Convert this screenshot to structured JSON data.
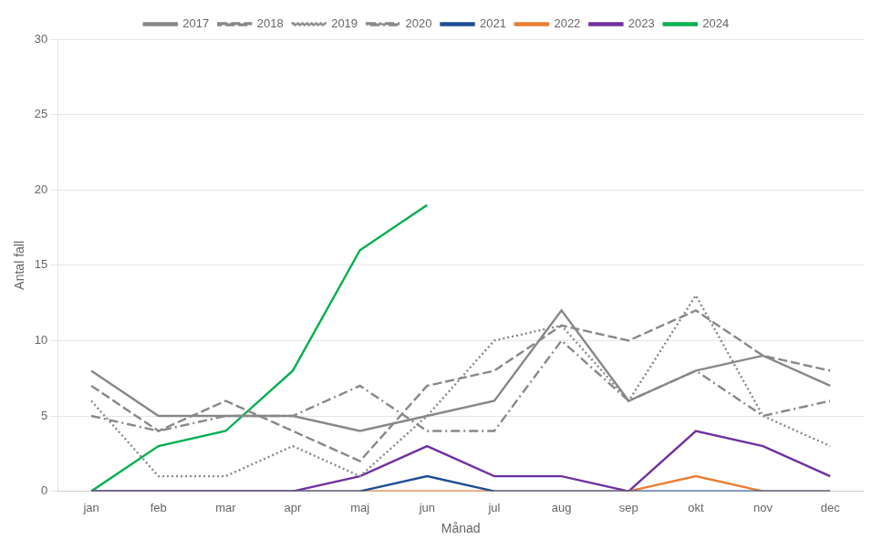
{
  "chart_data": {
    "type": "line",
    "xlabel": "Månad",
    "ylabel": "Antal fall",
    "categories": [
      "jan",
      "feb",
      "mar",
      "apr",
      "maj",
      "jun",
      "jul",
      "aug",
      "sep",
      "okt",
      "nov",
      "dec"
    ],
    "series": [
      {
        "name": "2017",
        "color": "#888888",
        "line_style": "solid",
        "values": [
          8,
          5,
          5,
          5,
          4,
          5,
          6,
          12,
          6,
          8,
          9,
          7
        ]
      },
      {
        "name": "2018",
        "color": "#888888",
        "line_style": "dashed",
        "values": [
          7,
          4,
          6,
          4,
          2,
          7,
          8,
          11,
          10,
          12,
          9,
          8
        ]
      },
      {
        "name": "2019",
        "color": "#888888",
        "line_style": "dotted",
        "values": [
          6,
          1,
          1,
          3,
          1,
          5,
          10,
          11,
          6,
          13,
          5,
          3
        ]
      },
      {
        "name": "2020",
        "color": "#888888",
        "line_style": "dashdot",
        "values": [
          5,
          4,
          5,
          5,
          7,
          4,
          4,
          10,
          6,
          8,
          5,
          6
        ]
      },
      {
        "name": "2021",
        "color": "#1f4e96",
        "line_style": "solid",
        "values": [
          0,
          0,
          0,
          0,
          0,
          1,
          0,
          0,
          0,
          0,
          0,
          0
        ]
      },
      {
        "name": "2022",
        "color": "#ed7d31",
        "line_style": "solid",
        "values": [
          0,
          0,
          0,
          0,
          0,
          0,
          0,
          0,
          0,
          1,
          0,
          0
        ]
      },
      {
        "name": "2023",
        "color": "#7030a0",
        "line_style": "solid",
        "values": [
          0,
          0,
          0,
          0,
          1,
          3,
          1,
          1,
          0,
          4,
          3,
          1
        ]
      },
      {
        "name": "2024",
        "color": "#00b050",
        "line_style": "solid",
        "values": [
          0,
          3,
          4,
          8,
          16,
          19,
          null,
          null,
          null,
          null,
          null,
          null
        ]
      }
    ],
    "ylim": [
      0,
      30
    ],
    "yticks": [
      0,
      5,
      10,
      15,
      20,
      25,
      30
    ],
    "grid": "y",
    "legend": "top"
  }
}
